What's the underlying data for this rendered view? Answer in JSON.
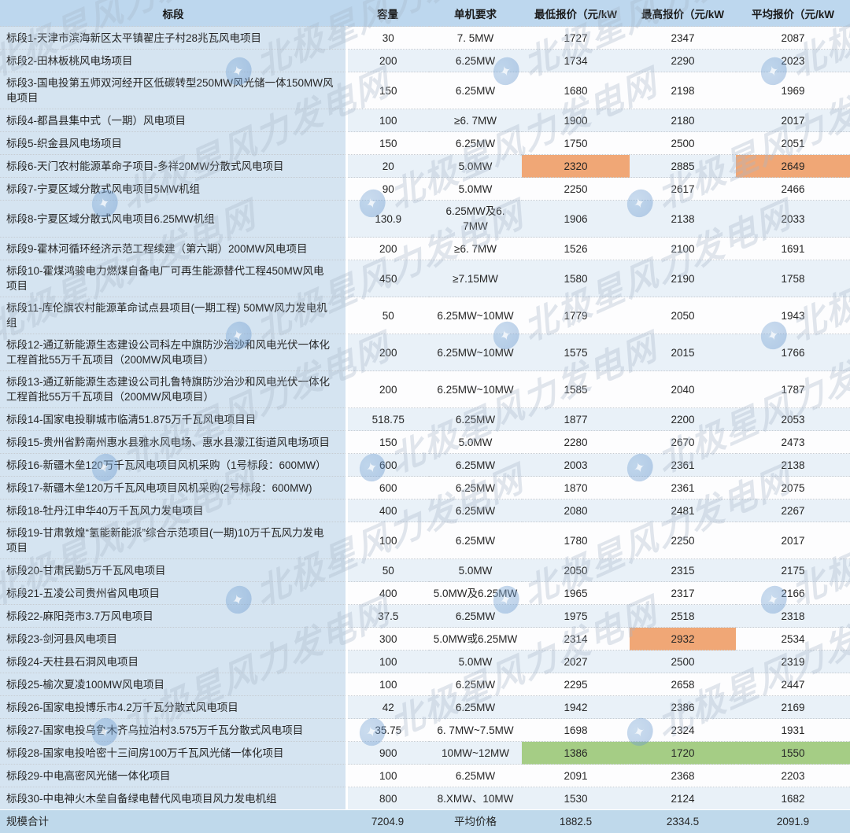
{
  "watermark": {
    "text": "北极星风力发电网",
    "logo_glyph": "✦"
  },
  "colors": {
    "highlight_orange": "#F0A776",
    "highlight_green": "#A5CD85",
    "header_bg": "#BDD7EE",
    "section_col_bg": "#D5E4F1",
    "zebra_bg": "#E9F1F8",
    "footer_bg": "#BFD9EB"
  },
  "table": {
    "columns": [
      {
        "key": "section",
        "label": "标段"
      },
      {
        "key": "capacity",
        "label": "容量"
      },
      {
        "key": "unit",
        "label": "单机要求"
      },
      {
        "key": "min",
        "label": "最低报价（元/kW"
      },
      {
        "key": "max",
        "label": "最高报价（元/kW"
      },
      {
        "key": "avg",
        "label": "平均报价（元/kW"
      }
    ],
    "rows": [
      {
        "section": "标段1-天津市滨海新区太平镇翟庄子村28兆瓦风电项目",
        "capacity": "30",
        "unit": "7. 5MW",
        "min": "1727",
        "max": "2347",
        "avg": "2087",
        "highlight": {}
      },
      {
        "section": "标段2-田林板桃风电场项目",
        "capacity": "200",
        "unit": "6.25MW",
        "min": "1734",
        "max": "2290",
        "avg": "2023",
        "highlight": {}
      },
      {
        "section": "标段3-国电投第五师双河经开区低碳转型250MW风光储一体150MW风电项目",
        "capacity": "150",
        "unit": "6.25MW",
        "min": "1680",
        "max": "2198",
        "avg": "1969",
        "highlight": {}
      },
      {
        "section": "标段4-都昌县集中式（一期）风电项目",
        "capacity": "100",
        "unit": "≥6. 7MW",
        "min": "1900",
        "max": "2180",
        "avg": "2017",
        "highlight": {}
      },
      {
        "section": "标段5-织金县风电场项目",
        "capacity": "150",
        "unit": "6.25MW",
        "min": "1750",
        "max": "2500",
        "avg": "2051",
        "highlight": {}
      },
      {
        "section": "标段6-天门农村能源革命子项目-多祥20MW分散式风电项目",
        "capacity": "20",
        "unit": "5.0MW",
        "min": "2320",
        "max": "2885",
        "avg": "2649",
        "highlight": {
          "min": "orange",
          "avg": "orange"
        }
      },
      {
        "section": "标段7-宁夏区域分散式风电项目5MW机组",
        "capacity": "90",
        "unit": "5.0MW",
        "min": "2250",
        "max": "2617",
        "avg": "2466",
        "highlight": {}
      },
      {
        "section": "标段8-宁夏区域分散式风电项目6.25MW机组",
        "capacity": "130.9",
        "unit": "6.25MW及6. 7MW",
        "min": "1906",
        "max": "2138",
        "avg": "2033",
        "highlight": {}
      },
      {
        "section": "标段9-霍林河循环经济示范工程续建（第六期）200MW风电项目",
        "capacity": "200",
        "unit": "≥6. 7MW",
        "min": "1526",
        "max": "2100",
        "avg": "1691",
        "highlight": {}
      },
      {
        "section": "标段10-霍煤鸿骏电力燃煤自备电厂可再生能源替代工程450MW风电项目",
        "capacity": "450",
        "unit": "≥7.15MW",
        "min": "1580",
        "max": "2190",
        "avg": "1758",
        "highlight": {}
      },
      {
        "section": "标段11-库伦旗农村能源革命试点县项目(一期工程) 50MW风力发电机组",
        "capacity": "50",
        "unit": "6.25MW~10MW",
        "min": "1779",
        "max": "2050",
        "avg": "1943",
        "highlight": {}
      },
      {
        "section": "标段12-通辽新能源生态建设公司科左中旗防沙治沙和风电光伏一体化工程首批55万千瓦项目（200MW风电项目）",
        "capacity": "200",
        "unit": "6.25MW~10MW",
        "min": "1575",
        "max": "2015",
        "avg": "1766",
        "highlight": {}
      },
      {
        "section": "标段13-通辽新能源生态建设公司扎鲁特旗防沙治沙和风电光伏一体化工程首批55万千瓦项目（200MW风电项目）",
        "capacity": "200",
        "unit": "6.25MW~10MW",
        "min": "1585",
        "max": "2040",
        "avg": "1787",
        "highlight": {}
      },
      {
        "section": "标段14-国家电投聊城市临清51.875万千瓦风电项目目",
        "capacity": "518.75",
        "unit": "6.25MW",
        "min": "1877",
        "max": "2200",
        "avg": "2053",
        "highlight": {}
      },
      {
        "section": "标段15-贵州省黔南州惠水县雅水风电场、惠水县濛江街道风电场项目",
        "capacity": "150",
        "unit": "5.0MW",
        "min": "2280",
        "max": "2670",
        "avg": "2473",
        "highlight": {}
      },
      {
        "section": "标段16-新疆木垒120万千瓦风电项目风机采购（1号标段：600MW）",
        "capacity": "600",
        "unit": "6.25MW",
        "min": "2003",
        "max": "2361",
        "avg": "2138",
        "highlight": {}
      },
      {
        "section": "标段17-新疆木垒120万千瓦风电项目风机采购(2号标段：600MW)",
        "capacity": "600",
        "unit": "6.25MW",
        "min": "1870",
        "max": "2361",
        "avg": "2075",
        "highlight": {}
      },
      {
        "section": "标段18-牡丹江申华40万千瓦风力发电项目",
        "capacity": "400",
        "unit": "6.25MW",
        "min": "2080",
        "max": "2481",
        "avg": "2267",
        "highlight": {}
      },
      {
        "section": "标段19-甘肃敦煌“氢能新能派”综合示范项目(一期)10万千瓦风力发电项目",
        "capacity": "100",
        "unit": "6.25MW",
        "min": "1780",
        "max": "2250",
        "avg": "2017",
        "highlight": {}
      },
      {
        "section": "标段20-甘肃民勤5万千瓦风电项目",
        "capacity": "50",
        "unit": "5.0MW",
        "min": "2050",
        "max": "2315",
        "avg": "2175",
        "highlight": {}
      },
      {
        "section": "标段21-五凌公司贵州省风电项目",
        "capacity": "400",
        "unit": "5.0MW及6.25MW",
        "min": "1965",
        "max": "2317",
        "avg": "2166",
        "highlight": {}
      },
      {
        "section": "标段22-麻阳尧市3.7万风电项目",
        "capacity": "37.5",
        "unit": "6.25MW",
        "min": "1975",
        "max": "2518",
        "avg": "2318",
        "highlight": {}
      },
      {
        "section": "标段23-剑河县风电项目",
        "capacity": "300",
        "unit": "5.0MW或6.25MW",
        "min": "2314",
        "max": "2932",
        "avg": "2534",
        "highlight": {
          "max": "orange"
        }
      },
      {
        "section": "标段24-天柱县石洞风电项目",
        "capacity": "100",
        "unit": "5.0MW",
        "min": "2027",
        "max": "2500",
        "avg": "2319",
        "highlight": {}
      },
      {
        "section": "标段25-榆次夏凌100MW风电项目",
        "capacity": "100",
        "unit": "6.25MW",
        "min": "2295",
        "max": "2658",
        "avg": "2447",
        "highlight": {}
      },
      {
        "section": "标段26-国家电投博乐市4.2万千瓦分散式风电项目",
        "capacity": "42",
        "unit": "6.25MW",
        "min": "1942",
        "max": "2386",
        "avg": "2169",
        "highlight": {}
      },
      {
        "section": "标段27-国家电投乌鲁木齐乌拉泊村3.575万千瓦分散式风电项目",
        "capacity": "35.75",
        "unit": "6. 7MW~7.5MW",
        "min": "1698",
        "max": "2324",
        "avg": "1931",
        "highlight": {}
      },
      {
        "section": "标段28-国家电投哈密十三间房100万千瓦风光储一体化项目",
        "capacity": "900",
        "unit": "10MW~12MW",
        "min": "1386",
        "max": "1720",
        "avg": "1550",
        "highlight": {
          "min": "green",
          "max": "green",
          "avg": "green"
        }
      },
      {
        "section": "标段29-中电高密风光储一体化项目",
        "capacity": "100",
        "unit": "6.25MW",
        "min": "2091",
        "max": "2368",
        "avg": "2203",
        "highlight": {}
      },
      {
        "section": "标段30-中电神火木垒自备绿电替代风电项目风力发电机组",
        "capacity": "800",
        "unit": "8.XMW、10MW",
        "min": "1530",
        "max": "2124",
        "avg": "1682",
        "highlight": {}
      }
    ],
    "footer": {
      "section": "规模合计",
      "capacity": "7204.9",
      "unit": "平均价格",
      "min": "1882.5",
      "max": "2334.5",
      "avg": "2091.9"
    }
  }
}
